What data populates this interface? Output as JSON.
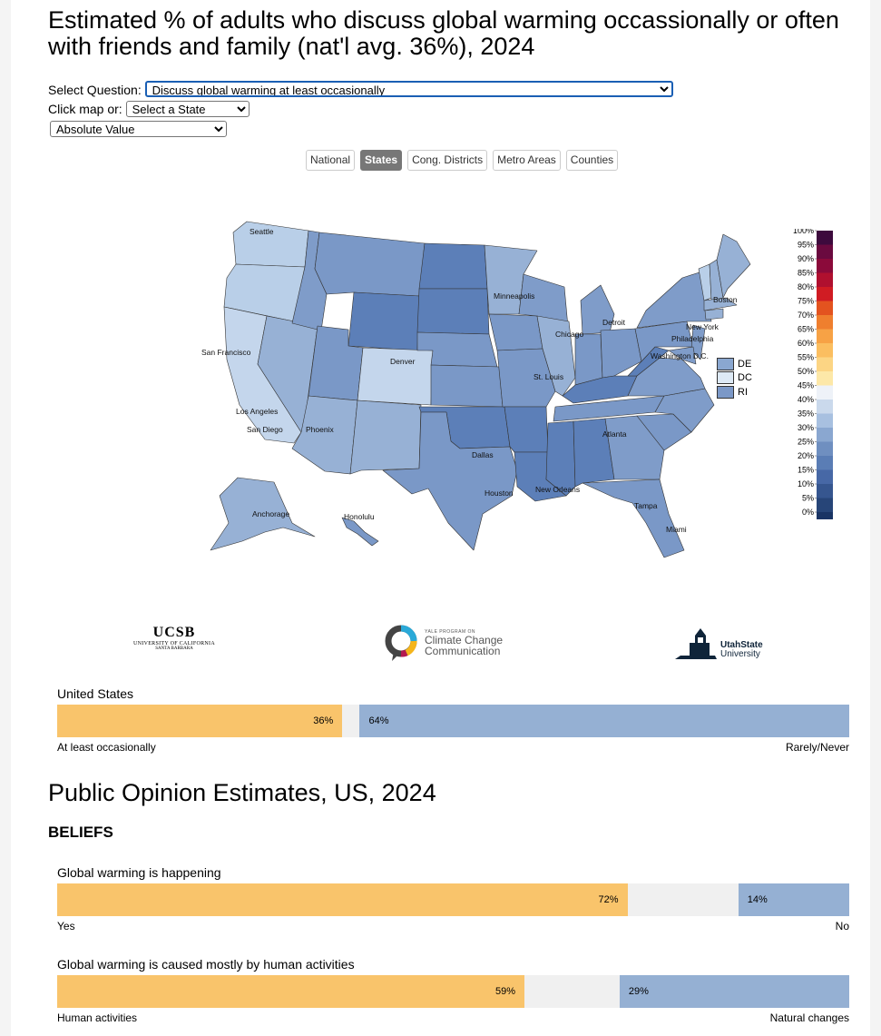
{
  "title": "Estimated % of adults who discuss global warming occassionally or often with friends and family (nat'l avg. 36%), 2024",
  "controls": {
    "question_label": "Select Question:",
    "question_value": "Discuss global warming at least occasionally",
    "click_map_label": "Click map or:",
    "state_value": "Select a State",
    "value_mode": "Absolute Value"
  },
  "tabs": [
    "National",
    "States",
    "Cong. Districts",
    "Metro Areas",
    "Counties"
  ],
  "active_tab": "States",
  "map": {
    "cities": [
      "Seattle",
      "San Francisco",
      "Los Angeles",
      "San Diego",
      "Phoenix",
      "Denver",
      "Dallas",
      "Houston",
      "Minneapolis",
      "Chicago",
      "St. Louis",
      "Detroit",
      "Atlanta",
      "New Orleans",
      "Tampa",
      "Miami",
      "Washington D.C.",
      "Philadelphia",
      "New York",
      "Boston",
      "Anchorage",
      "Honolulu"
    ],
    "small_states": [
      {
        "label": "DE",
        "color": "#8aa7d0"
      },
      {
        "label": "DC",
        "color": "#dde9f5"
      },
      {
        "label": "RI",
        "color": "#7b98c7"
      }
    ]
  },
  "legend": {
    "ticks": [
      "100%",
      "95%",
      "90%",
      "85%",
      "80%",
      "75%",
      "70%",
      "65%",
      "60%",
      "55%",
      "50%",
      "45%",
      "40%",
      "35%",
      "30%",
      "25%",
      "20%",
      "15%",
      "10%",
      "5%",
      "0%"
    ],
    "colors": [
      "#3d0a3d",
      "#6a0a3f",
      "#8b0a3a",
      "#b0102f",
      "#d01c23",
      "#e3531f",
      "#ef7f2e",
      "#f7a245",
      "#fbbe60",
      "#fcd584",
      "#fde8a8",
      "#eef2f8",
      "#cad9ec",
      "#a8c0e0",
      "#8aa7d0",
      "#6f8fc0",
      "#5a7db5",
      "#4768a6",
      "#36568f",
      "#274578",
      "#1a3464"
    ]
  },
  "logos": {
    "ucsb": {
      "name": "UCSB",
      "sub1": "UNIVERSITY OF CALIFORNIA",
      "sub2": "SANTA BARBARA"
    },
    "yale": {
      "top": "YALE PROGRAM ON",
      "line1": "Climate Change",
      "line2": "Communication"
    },
    "usu": {
      "line1": "UtahState",
      "line2": "University"
    }
  },
  "national_bar": {
    "title": "United States",
    "a_value": "36%",
    "b_value": "64%",
    "a_pct": 36,
    "b_pct": 64,
    "gap_pct": 0,
    "a_label": "At least occasionally",
    "b_label": "Rarely/Never"
  },
  "estimates": {
    "heading": "Public Opinion Estimates, US, 2024",
    "section": "BELIEFS",
    "items": [
      {
        "title": "Global warming is happening",
        "a_value": "72%",
        "b_value": "14%",
        "a_pct": 72,
        "b_pct": 14,
        "a_label": "Yes",
        "b_label": "No"
      },
      {
        "title": "Global warming is caused mostly by human activities",
        "a_value": "59%",
        "b_value": "29%",
        "a_pct": 59,
        "b_pct": 29,
        "a_label": "Human activities",
        "b_label": "Natural changes"
      }
    ]
  }
}
